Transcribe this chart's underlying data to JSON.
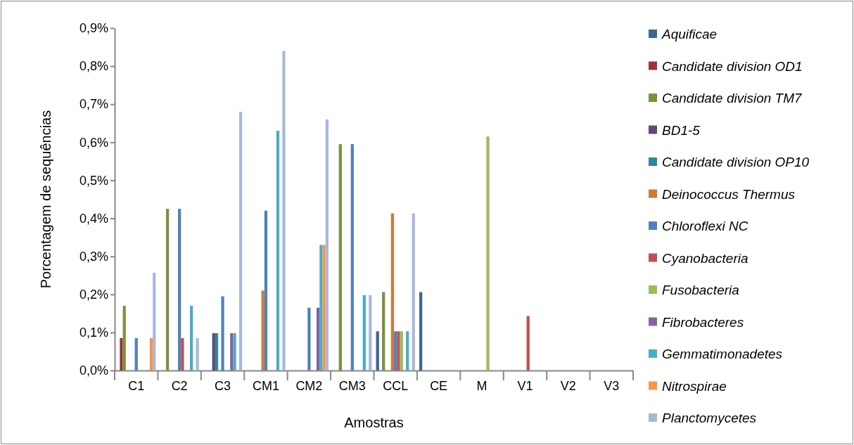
{
  "chart_data": {
    "type": "bar",
    "xlabel": "Amostras",
    "ylabel": "Porcentagem de sequências",
    "categories": [
      "C1",
      "C2",
      "C3",
      "CM1",
      "CM2",
      "CM3",
      "CCL",
      "CE",
      "M",
      "V1",
      "V2",
      "V3"
    ],
    "ylim": [
      0,
      0.9
    ],
    "yticks": [
      {
        "value": 0,
        "label": "0,0%"
      },
      {
        "value": 0.1,
        "label": "0,1%"
      },
      {
        "value": 0.2,
        "label": "0,2%"
      },
      {
        "value": 0.3,
        "label": "0,3%"
      },
      {
        "value": 0.4,
        "label": "0,4%"
      },
      {
        "value": 0.5,
        "label": "0,5%"
      },
      {
        "value": 0.6,
        "label": "0,6%"
      },
      {
        "value": 0.7,
        "label": "0,7%"
      },
      {
        "value": 0.8,
        "label": "0,8%"
      },
      {
        "value": 0.9,
        "label": "0,9%"
      }
    ],
    "grid": false,
    "legend": "right",
    "series": [
      {
        "name": "Aquificae",
        "color": "#3c6696",
        "values": [
          null,
          null,
          null,
          null,
          null,
          null,
          0.103,
          0.206,
          null,
          null,
          null,
          null
        ]
      },
      {
        "name": "Candidate division OD1",
        "color": "#953735",
        "values": [
          0.085,
          null,
          null,
          null,
          null,
          null,
          null,
          null,
          null,
          null,
          null,
          null
        ]
      },
      {
        "name": "Candidate division TM7",
        "color": "#77933c",
        "values": [
          0.17,
          0.425,
          null,
          null,
          null,
          0.595,
          0.206,
          null,
          null,
          null,
          null,
          null
        ]
      },
      {
        "name": "BD1-5",
        "color": "#604a7b",
        "values": [
          null,
          null,
          0.098,
          null,
          null,
          null,
          null,
          null,
          null,
          null,
          null,
          null
        ]
      },
      {
        "name": "Candidate division OP10",
        "color": "#31859c",
        "values": [
          null,
          null,
          0.098,
          null,
          null,
          null,
          null,
          null,
          null,
          null,
          null,
          null
        ]
      },
      {
        "name": "Deinococcus Thermus",
        "color": "#cc7a38",
        "values": [
          null,
          null,
          null,
          0.21,
          null,
          null,
          0.413,
          null,
          null,
          null,
          null,
          null
        ]
      },
      {
        "name": "Chloroflexi NC",
        "color": "#4f81bd",
        "values": [
          0.085,
          0.425,
          0.195,
          0.42,
          0.165,
          0.595,
          0.103,
          null,
          null,
          null,
          null,
          null
        ]
      },
      {
        "name": "Cyanobacteria",
        "color": "#c0504d",
        "values": [
          null,
          0.085,
          null,
          null,
          null,
          null,
          0.103,
          null,
          null,
          0.143,
          null,
          null
        ]
      },
      {
        "name": "Fusobacteria",
        "color": "#9bbb59",
        "values": [
          null,
          null,
          null,
          null,
          null,
          null,
          0.103,
          null,
          0.615,
          null,
          null,
          null
        ]
      },
      {
        "name": "Fibrobacteres",
        "color": "#8064a2",
        "values": [
          null,
          null,
          0.098,
          null,
          0.165,
          null,
          null,
          null,
          null,
          null,
          null,
          null
        ]
      },
      {
        "name": "Gemmatimonadetes",
        "color": "#4bacc6",
        "values": [
          null,
          0.17,
          0.098,
          0.63,
          0.33,
          0.198,
          0.103,
          null,
          null,
          null,
          null,
          null
        ]
      },
      {
        "name": "Nitrospirae",
        "color": "#f79646",
        "values": [
          0.085,
          null,
          null,
          null,
          0.33,
          null,
          null,
          null,
          null,
          null,
          null,
          null
        ]
      },
      {
        "name": "Planctomycetes",
        "color": "#a9b8da",
        "values": [
          0.257,
          0.085,
          0.68,
          0.84,
          0.66,
          0.198,
          0.413,
          null,
          null,
          null,
          null,
          null
        ]
      }
    ]
  }
}
